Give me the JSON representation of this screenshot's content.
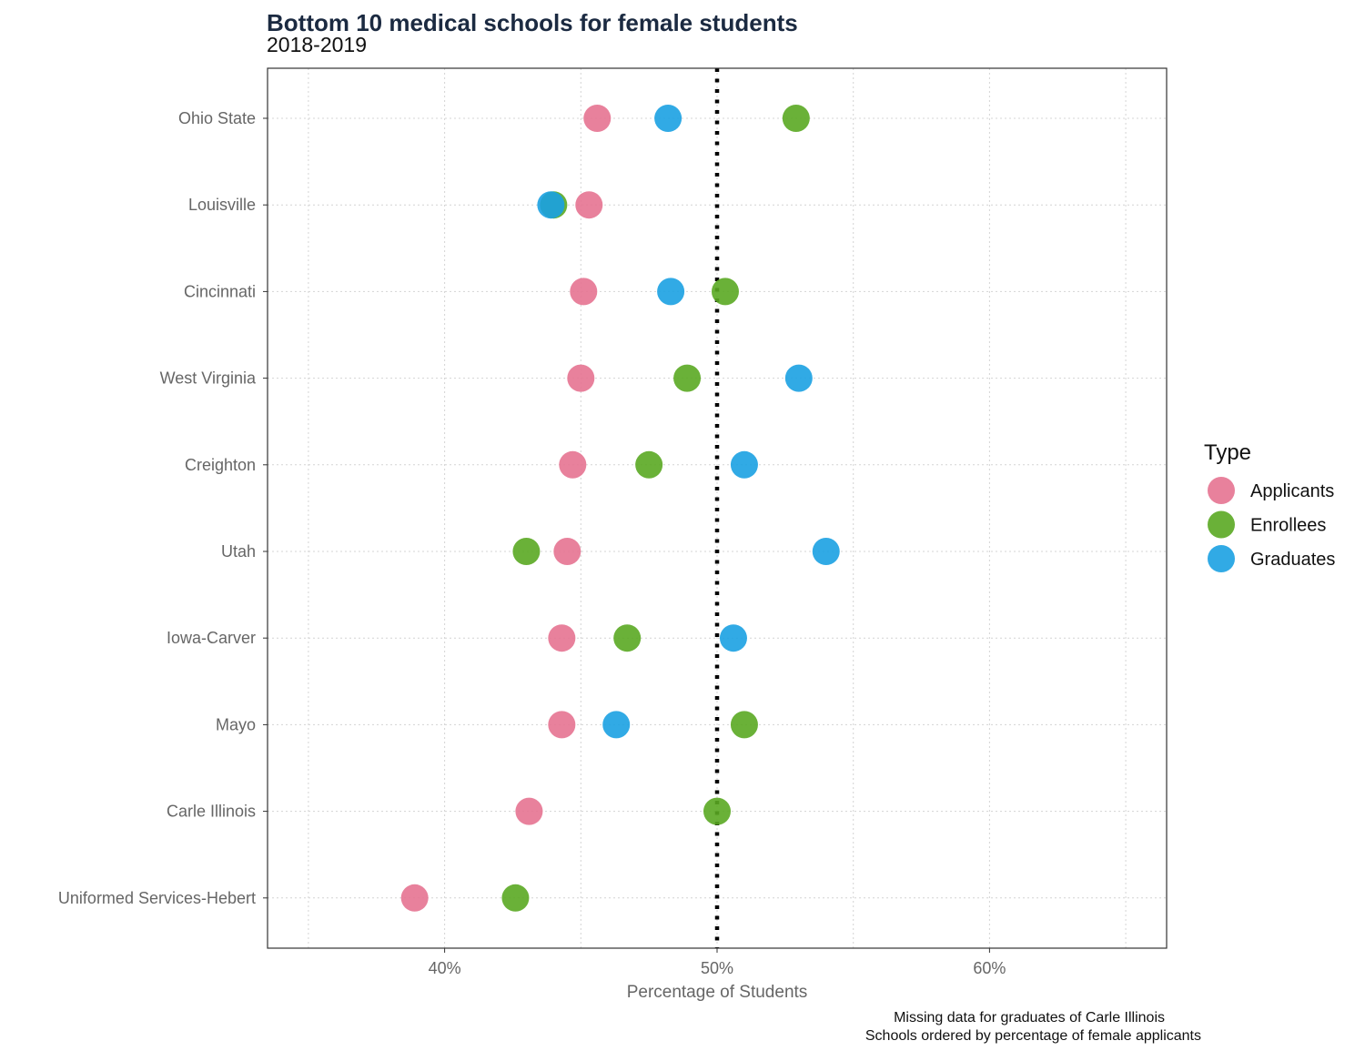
{
  "chart_data": {
    "type": "scatter",
    "title": "Bottom 10 medical schools for female students",
    "subtitle": "2018-2019",
    "xlabel": "Percentage of Students",
    "ylabel": "",
    "xlim": [
      0.335,
      0.665
    ],
    "x_ticks": [
      0.4,
      0.5,
      0.6
    ],
    "x_tick_labels": [
      "40%",
      "50%",
      "60%"
    ],
    "reference_line": {
      "x": 0.5,
      "style": "dotted"
    },
    "grid": true,
    "categories": [
      "Ohio State",
      "Louisville",
      "Cincinnati",
      "West Virginia",
      "Creighton",
      "Utah",
      "Iowa-Carver",
      "Mayo",
      "Carle Illinois",
      "Uniformed Services-Hebert"
    ],
    "series": [
      {
        "name": "Applicants",
        "color": "#e57391",
        "values": [
          0.456,
          0.453,
          0.451,
          0.45,
          0.447,
          0.445,
          0.443,
          0.443,
          0.431,
          0.389
        ]
      },
      {
        "name": "Enrollees",
        "color": "#5aa822",
        "values": [
          0.529,
          0.44,
          0.503,
          0.489,
          0.475,
          0.43,
          0.467,
          0.51,
          0.5,
          0.426
        ]
      },
      {
        "name": "Graduates",
        "color": "#1ba1e2",
        "values": [
          0.482,
          0.439,
          0.483,
          0.53,
          0.51,
          0.54,
          0.506,
          0.463,
          null,
          null
        ]
      }
    ],
    "legend": {
      "title": "Type",
      "position": "right"
    },
    "caption": [
      "Missing data for graduates of Carle Illinois",
      "Schools ordered by percentage of female applicants"
    ]
  }
}
